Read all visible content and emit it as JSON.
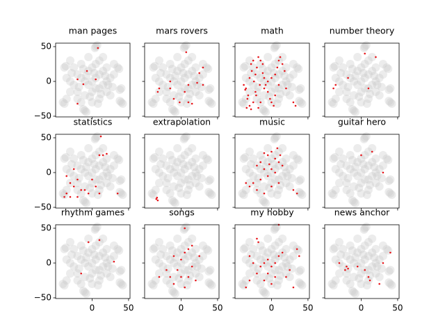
{
  "chart_data": {
    "type": "scatter",
    "xlim": [
      -50,
      52
    ],
    "ylim": [
      -51,
      55
    ],
    "xticks": [
      0,
      50
    ],
    "yticks": [
      50,
      0,
      {
        "value": -50,
        "label": "−50"
      }
    ],
    "background": {
      "color": "#c8c8c8",
      "x": [
        -20,
        -15,
        -10,
        -5,
        0,
        5,
        10,
        15,
        20,
        -25,
        -30,
        -35,
        -20,
        -10,
        0,
        10,
        15,
        20,
        25,
        -5,
        0,
        5,
        -15,
        10,
        -25,
        -30,
        -20,
        0,
        10,
        20,
        25,
        30,
        30,
        15,
        -5,
        -30,
        -35,
        -15,
        5,
        -8,
        12,
        -18,
        3,
        18,
        -28,
        22,
        -12,
        8,
        -3,
        28,
        5,
        7,
        4,
        40,
        42,
        38,
        40,
        38,
        -10,
        -12,
        -8,
        -38,
        -36,
        35,
        37,
        -40,
        -38
      ],
      "y": [
        10,
        5,
        0,
        -5,
        0,
        5,
        10,
        15,
        20,
        -5,
        0,
        5,
        -15,
        -20,
        -15,
        -10,
        -5,
        0,
        5,
        15,
        20,
        25,
        25,
        30,
        20,
        -15,
        -25,
        -30,
        -25,
        -15,
        -20,
        10,
        25,
        35,
        35,
        30,
        -25,
        -30,
        -10,
        8,
        -18,
        -8,
        12,
        8,
        12,
        -5,
        18,
        -32,
        -22,
        -8,
        50,
        52,
        48,
        -30,
        -32,
        -28,
        -10,
        -12,
        -42,
        -40,
        -44,
        20,
        22,
        20,
        18,
        -30,
        -32
      ]
    },
    "highlight_color": "#e8151a",
    "subplots": [
      {
        "title": "man pages",
        "x": [
          8,
          -7,
          -20,
          -12,
          5,
          -20
        ],
        "y": [
          48,
          15,
          3,
          -4,
          3,
          -32
        ]
      },
      {
        "title": "mars rovers",
        "x": [
          7,
          30,
          25,
          -15,
          -30,
          -32,
          -15,
          5,
          10,
          15,
          22,
          30,
          -10,
          -2,
          10
        ],
        "y": [
          42,
          20,
          12,
          0,
          -10,
          -15,
          -10,
          -15,
          -30,
          -32,
          -2,
          -5,
          -25,
          -30,
          -5
        ]
      },
      {
        "title": "math",
        "x": [
          -38,
          -35,
          -32,
          -30,
          -28,
          -25,
          -22,
          -20,
          -18,
          -15,
          -12,
          -10,
          -8,
          -5,
          -2,
          0,
          3,
          5,
          8,
          10,
          12,
          15,
          18,
          20,
          -36,
          -33,
          -30,
          -27,
          -24,
          -21,
          -18,
          -15,
          -10,
          -5,
          0,
          5,
          10,
          -34,
          -28,
          -22,
          -16,
          -12,
          30,
          33,
          -25
        ],
        "y": [
          -5,
          -10,
          -20,
          -35,
          -40,
          -30,
          10,
          20,
          35,
          30,
          25,
          5,
          -5,
          -15,
          -25,
          -30,
          -35,
          10,
          20,
          30,
          35,
          25,
          15,
          -10,
          -12,
          -25,
          5,
          15,
          0,
          -20,
          -38,
          -30,
          -10,
          0,
          5,
          -20,
          -5,
          -38,
          25,
          -15,
          -5,
          12,
          -30,
          -35,
          30
        ]
      },
      {
        "title": "number theory",
        "x": [
          5,
          20,
          -35,
          -18,
          10,
          -38
        ],
        "y": [
          40,
          35,
          -5,
          5,
          -10,
          -10
        ]
      },
      {
        "title": "statistics",
        "x": [
          12,
          10,
          15,
          20,
          -35,
          -30,
          -25,
          -35,
          -30,
          -20,
          -15,
          -10,
          -5,
          5,
          10,
          -25,
          -38,
          35,
          -20,
          0
        ],
        "y": [
          52,
          25,
          25,
          27,
          -5,
          -15,
          -20,
          -30,
          -35,
          -10,
          -25,
          -25,
          -30,
          -20,
          -30,
          5,
          -35,
          -30,
          -35,
          -10
        ]
      },
      {
        "title": "extrapolation",
        "x": [
          -33,
          -32,
          -34
        ],
        "y": [
          -36,
          -40,
          -38
        ]
      },
      {
        "title": "music",
        "x": [
          -5,
          -10,
          0,
          5,
          10,
          -15,
          -20,
          -10,
          0,
          5,
          -5,
          -15,
          -25,
          -35,
          -30,
          -20,
          -10,
          0,
          10,
          30,
          35,
          12,
          8,
          -3,
          15
        ],
        "y": [
          25,
          28,
          30,
          20,
          15,
          15,
          10,
          5,
          5,
          0,
          -5,
          -10,
          -15,
          -15,
          -20,
          -25,
          -30,
          -20,
          -15,
          -25,
          -30,
          25,
          35,
          12,
          10
        ]
      },
      {
        "title": "guitar hero",
        "x": [
          0,
          15,
          30
        ],
        "y": [
          25,
          30,
          0
        ]
      },
      {
        "title": "rhythm games",
        "x": [
          -5,
          10,
          30,
          -15
        ],
        "y": [
          30,
          33,
          2,
          -15
        ]
      },
      {
        "title": "songs",
        "x": [
          5,
          -10,
          0,
          5,
          10,
          15,
          -5,
          0,
          -15,
          -30,
          15,
          20,
          5,
          -10,
          25,
          -20,
          10
        ],
        "y": [
          50,
          10,
          5,
          15,
          20,
          25,
          -10,
          -20,
          -20,
          -20,
          -5,
          -25,
          -35,
          -30,
          10,
          -10,
          -20
        ]
      },
      {
        "title": "my hobby",
        "x": [
          -20,
          -18,
          10,
          -30,
          -25,
          -15,
          -10,
          -5,
          0,
          5,
          10,
          15,
          -20,
          -30,
          -35,
          -10,
          0,
          20,
          35,
          38,
          25,
          -5,
          5,
          30
        ],
        "y": [
          35,
          30,
          55,
          10,
          0,
          -5,
          0,
          5,
          -5,
          0,
          10,
          15,
          -15,
          -25,
          -35,
          -25,
          -30,
          -20,
          20,
          10,
          -10,
          -15,
          -20,
          -35
        ]
      },
      {
        "title": "news anchor",
        "x": [
          -30,
          -20,
          -18,
          -22,
          5,
          10,
          12,
          25,
          30,
          40,
          -5
        ],
        "y": [
          0,
          -5,
          -8,
          -10,
          -10,
          -20,
          -25,
          -30,
          0,
          15,
          -5
        ]
      }
    ]
  }
}
